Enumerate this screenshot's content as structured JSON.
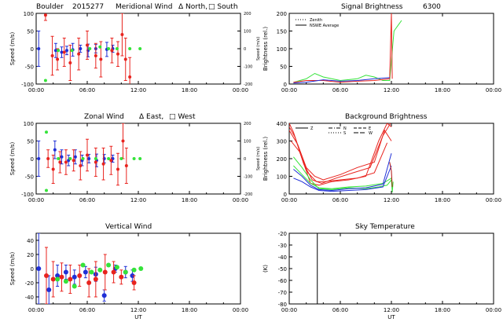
{
  "figure": {
    "station": "Boulder",
    "date_code": "2015277"
  },
  "colors": {
    "red": "#e8231e",
    "blue": "#1f2fd6",
    "green": "#35e33a",
    "dkred": "#b0120f",
    "black": "#000000"
  },
  "chart_data": [
    {
      "id": "merid",
      "type": "scatter",
      "title": "Meridional Wind",
      "legend_text": [
        "Δ North,",
        "□ South"
      ],
      "ylabel": "Speed (m/s)",
      "ylim": [
        -100,
        100
      ],
      "yticks": [
        "-100",
        "-50",
        "0",
        "50",
        "100"
      ],
      "y2label": "Speed (m/s)",
      "y2ticks": [
        "-200",
        "-100",
        "0",
        "100",
        "200"
      ],
      "xlim": [
        0,
        24
      ],
      "xticks": [
        "00:00",
        "06:00",
        "12:00",
        "18:00",
        "00:00"
      ],
      "series": [
        {
          "name": "blue",
          "color": "blue",
          "points": [
            [
              0.3,
              0,
              50
            ],
            [
              2.3,
              -5,
              20
            ],
            [
              3.0,
              -10,
              15
            ],
            [
              3.6,
              -5,
              12
            ],
            [
              4.3,
              -3,
              18
            ],
            [
              5.2,
              0,
              10
            ],
            [
              6.1,
              -5,
              18
            ],
            [
              7.0,
              0,
              12
            ],
            [
              8.3,
              -2,
              20
            ],
            [
              9.0,
              0,
              10
            ]
          ]
        },
        {
          "name": "red",
          "color": "red",
          "points": [
            [
              1.1,
              95,
              15
            ],
            [
              1.9,
              -20,
              55
            ],
            [
              2.5,
              -30,
              30
            ],
            [
              3.3,
              -10,
              40
            ],
            [
              4.0,
              -40,
              50
            ],
            [
              5.0,
              -15,
              45
            ],
            [
              6.0,
              10,
              40
            ],
            [
              7.0,
              -20,
              35
            ],
            [
              7.6,
              -30,
              50
            ],
            [
              8.9,
              -5,
              35
            ],
            [
              9.6,
              -15,
              35
            ],
            [
              10.1,
              40,
              60
            ],
            [
              10.5,
              -30,
              60
            ],
            [
              11.0,
              -80,
              55
            ]
          ]
        },
        {
          "name": "green",
          "color": "green",
          "points": [
            [
              1.1,
              -90,
              0
            ],
            [
              2.6,
              -5,
              0
            ],
            [
              4.2,
              -5,
              0
            ],
            [
              6.3,
              0,
              0
            ],
            [
              7.5,
              5,
              0
            ],
            [
              8.5,
              0,
              0
            ],
            [
              9.5,
              0,
              0
            ],
            [
              11.0,
              0,
              0
            ],
            [
              12.2,
              0,
              0
            ]
          ]
        }
      ]
    },
    {
      "id": "signal",
      "type": "line",
      "title": "Signal Brightness",
      "wavelength": "6300",
      "ylabel": "Brightness (rel.)",
      "ylim": [
        0,
        200
      ],
      "yticks": [
        "0",
        "50",
        "100",
        "150",
        "200"
      ],
      "xlim": [
        0,
        24
      ],
      "xticks": [
        "00:00",
        "06:00",
        "12:00",
        "18:00",
        "00:00"
      ],
      "legend": [
        "Zenith",
        "NSWE Average"
      ],
      "series": [
        {
          "name": "green",
          "color": "green",
          "x": [
            0.5,
            2,
            3,
            4,
            6,
            8,
            9,
            10,
            11,
            11.8,
            12.3,
            13.2
          ],
          "y": [
            5,
            15,
            30,
            20,
            10,
            15,
            25,
            20,
            10,
            10,
            150,
            180
          ]
        },
        {
          "name": "red",
          "color": "red",
          "x": [
            0.5,
            2,
            4,
            6,
            8,
            10,
            11.8,
            12.0,
            12.1
          ],
          "y": [
            5,
            10,
            10,
            5,
            8,
            10,
            15,
            200,
            15
          ]
        },
        {
          "name": "blue",
          "color": "blue",
          "x": [
            0.5,
            2,
            4,
            6,
            8,
            10,
            11.8
          ],
          "y": [
            3,
            5,
            12,
            8,
            10,
            15,
            18
          ]
        }
      ]
    },
    {
      "id": "zonal",
      "type": "scatter",
      "title": "Zonal Wind",
      "legend_text": [
        "Δ East,",
        "□ West"
      ],
      "ylabel": "Speed (m/s)",
      "ylim": [
        -100,
        100
      ],
      "yticks": [
        "-100",
        "-50",
        "0",
        "50",
        "100"
      ],
      "y2label": "Speed (m/s)",
      "y2ticks": [
        "-200",
        "-100",
        "0",
        "100",
        "200"
      ],
      "xlim": [
        0,
        24
      ],
      "xticks": [
        "00:00",
        "06:00",
        "12:00",
        "18:00",
        "00:00"
      ],
      "series": [
        {
          "name": "blue",
          "color": "blue",
          "points": [
            [
              0.3,
              0,
              50
            ],
            [
              2.2,
              25,
              25
            ],
            [
              3.0,
              5,
              20
            ],
            [
              3.8,
              -5,
              15
            ],
            [
              4.6,
              5,
              20
            ],
            [
              5.4,
              -5,
              15
            ],
            [
              6.2,
              0,
              12
            ],
            [
              7.1,
              -5,
              18
            ],
            [
              8.0,
              0,
              12
            ],
            [
              9.0,
              0,
              10
            ]
          ]
        },
        {
          "name": "red",
          "color": "red",
          "points": [
            [
              1.4,
              0,
              25
            ],
            [
              2.0,
              -30,
              40
            ],
            [
              2.8,
              -10,
              30
            ],
            [
              3.5,
              -10,
              35
            ],
            [
              4.4,
              -5,
              30
            ],
            [
              5.2,
              -20,
              40
            ],
            [
              6.0,
              10,
              45
            ],
            [
              7.0,
              -10,
              40
            ],
            [
              7.9,
              -15,
              45
            ],
            [
              8.8,
              -5,
              40
            ],
            [
              9.6,
              -30,
              45
            ],
            [
              10.2,
              50,
              50
            ],
            [
              10.6,
              -20,
              50
            ]
          ]
        },
        {
          "name": "green",
          "color": "green",
          "points": [
            [
              1.2,
              75,
              0
            ],
            [
              1.2,
              -90,
              0
            ],
            [
              2.6,
              0,
              0
            ],
            [
              4.0,
              0,
              0
            ],
            [
              5.5,
              0,
              0
            ],
            [
              7.0,
              0,
              0
            ],
            [
              8.5,
              0,
              0
            ],
            [
              10.0,
              0,
              0
            ],
            [
              11.5,
              0,
              0
            ],
            [
              12.2,
              0,
              0
            ]
          ]
        }
      ]
    },
    {
      "id": "background",
      "type": "line",
      "title": "Background Brightness",
      "ylabel": "Brightness (rel.)",
      "ylim": [
        0,
        400
      ],
      "yticks": [
        "0",
        "100",
        "200",
        "300",
        "400"
      ],
      "xlim": [
        0,
        24
      ],
      "xticks": [
        "00:00",
        "06:00",
        "12:00",
        "18:00",
        "00:00"
      ],
      "legend": [
        "Z",
        "N",
        "E",
        "S",
        "W"
      ],
      "series": [
        {
          "name": "red1",
          "color": "red",
          "x": [
            0,
            0.5,
            1.5,
            2.5,
            3.5,
            5,
            7,
            9,
            10.5,
            11.5,
            12
          ],
          "y": [
            400,
            350,
            200,
            60,
            50,
            70,
            80,
            100,
            300,
            400,
            380
          ]
        },
        {
          "name": "red2",
          "color": "red",
          "x": [
            0,
            0.7,
            1.7,
            2.7,
            3.8,
            5.5,
            7.5,
            9.5,
            11,
            11.9
          ],
          "y": [
            380,
            320,
            170,
            80,
            60,
            90,
            120,
            150,
            330,
            400
          ]
        },
        {
          "name": "red3",
          "color": "red",
          "x": [
            0,
            1,
            2,
            3,
            4,
            6,
            8,
            10,
            11.2,
            12
          ],
          "y": [
            360,
            280,
            150,
            100,
            80,
            110,
            150,
            180,
            360,
            300
          ]
        },
        {
          "name": "red4",
          "color": "red",
          "x": [
            0.2,
            1.2,
            2.2,
            3.2,
            4.2,
            6,
            8,
            10,
            11.5
          ],
          "y": [
            300,
            240,
            120,
            70,
            70,
            80,
            90,
            120,
            290
          ]
        },
        {
          "name": "green1",
          "color": "green",
          "x": [
            0.5,
            1.5,
            2.5,
            3.5,
            5,
            7,
            9,
            10.5,
            11.5,
            12,
            12.1,
            12.2
          ],
          "y": [
            210,
            150,
            80,
            30,
            25,
            35,
            30,
            40,
            50,
            80,
            10,
            70
          ]
        },
        {
          "name": "green2",
          "color": "green",
          "x": [
            0.5,
            1.5,
            2.5,
            3.5,
            5,
            7,
            9,
            11,
            12
          ],
          "y": [
            160,
            110,
            60,
            35,
            30,
            40,
            45,
            60,
            90
          ]
        },
        {
          "name": "blue1",
          "color": "blue",
          "x": [
            0.5,
            1.5,
            2.5,
            3.5,
            5,
            7,
            9,
            11,
            12
          ],
          "y": [
            140,
            100,
            50,
            25,
            20,
            30,
            35,
            55,
            230
          ]
        },
        {
          "name": "blue2",
          "color": "blue",
          "x": [
            0.5,
            1.5,
            2.5,
            3.5,
            5,
            7,
            9,
            11,
            12
          ],
          "y": [
            90,
            70,
            40,
            20,
            15,
            20,
            25,
            40,
            160
          ]
        },
        {
          "name": "dkred",
          "color": "dkred",
          "x": [
            11.8,
            12,
            12.1
          ],
          "y": [
            180,
            130,
            40
          ]
        }
      ]
    },
    {
      "id": "vertical",
      "type": "scatter",
      "title": "Vertical Wind",
      "ylabel": "Speed (m/s)",
      "ylim": [
        -50,
        50
      ],
      "yticks": [
        "-40",
        "-20",
        "0",
        "20",
        "40"
      ],
      "xlim": [
        0,
        24
      ],
      "xticks": [
        "00:00",
        "06:00",
        "12:00",
        "18:00",
        "00:00"
      ],
      "xlabel": "UT",
      "series": [
        {
          "name": "blue",
          "color": "blue",
          "points": [
            [
              0.3,
              0,
              50
            ],
            [
              1.5,
              -30,
              20
            ],
            [
              2.5,
              -10,
              15
            ],
            [
              3.5,
              -5,
              10
            ],
            [
              4.5,
              -12,
              10
            ],
            [
              5.8,
              -5,
              8
            ],
            [
              7.0,
              -8,
              10
            ],
            [
              8.0,
              -38,
              8
            ],
            [
              9.3,
              0,
              5
            ],
            [
              10.5,
              -5,
              8
            ],
            [
              11.3,
              -10,
              8
            ]
          ]
        },
        {
          "name": "red",
          "color": "red",
          "points": [
            [
              1.2,
              -10,
              40
            ],
            [
              2.0,
              -15,
              25
            ],
            [
              3.0,
              -12,
              20
            ],
            [
              4.0,
              -15,
              20
            ],
            [
              5.1,
              -10,
              15
            ],
            [
              6.2,
              -20,
              20
            ],
            [
              7.0,
              -15,
              25
            ],
            [
              8.1,
              -5,
              25
            ],
            [
              9.1,
              -5,
              15
            ],
            [
              10.0,
              -12,
              10
            ],
            [
              11.5,
              -20,
              10
            ]
          ]
        },
        {
          "name": "green",
          "color": "green",
          "points": [
            [
              2.5,
              -15,
              0
            ],
            [
              3.5,
              -18,
              0
            ],
            [
              4.5,
              -25,
              0
            ],
            [
              5.5,
              5,
              0
            ],
            [
              6.5,
              -5,
              0
            ],
            [
              7.5,
              -2,
              0
            ],
            [
              8.5,
              5,
              0
            ],
            [
              9.5,
              2,
              0
            ],
            [
              10.5,
              -5,
              0
            ],
            [
              11.5,
              -2,
              0
            ],
            [
              12.3,
              0,
              0
            ]
          ]
        }
      ]
    },
    {
      "id": "sky",
      "type": "line",
      "title": "Sky Temperature",
      "ylabel": "(K)",
      "ylim": [
        -80,
        -20
      ],
      "yticks": [
        "-80",
        "-70",
        "-60",
        "-50",
        "-40",
        "-30",
        "-20"
      ],
      "xlim": [
        0,
        24
      ],
      "xticks": [
        "00:00",
        "06:00",
        "12:00",
        "18:00",
        "00:00"
      ],
      "xlabel": "UT",
      "vline_x": 3.3,
      "series": []
    }
  ]
}
